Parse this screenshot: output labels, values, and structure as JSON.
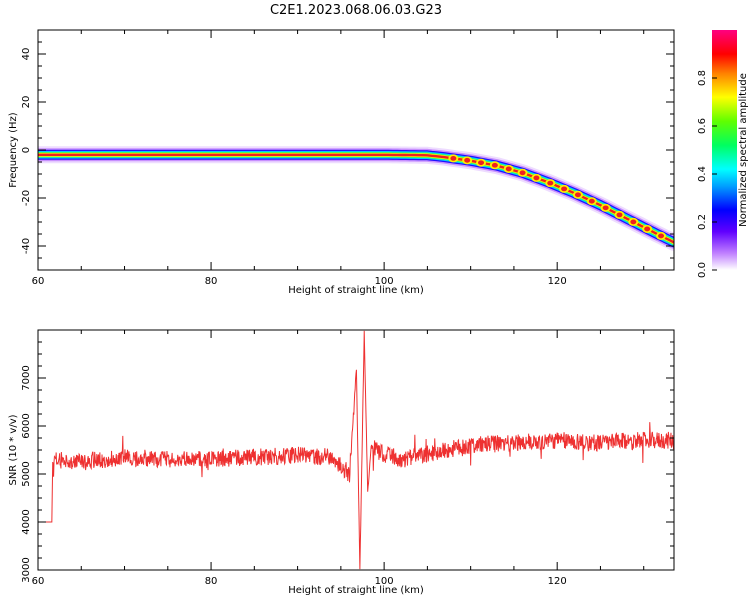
{
  "title": "C2E1.2023.068.06.03.G23",
  "colors": {
    "snr_line": "#ee3030",
    "track_core": "#ee2020",
    "background": "#ffffff"
  },
  "chart_data": [
    {
      "type": "heatmap",
      "xlabel": "Height of straight line (km)",
      "ylabel": "Frequency (Hz)",
      "xlim": [
        60,
        133.5
      ],
      "ylim": [
        -50,
        50
      ],
      "xticks": [
        "60",
        "80",
        "100",
        "120"
      ],
      "yticks": [
        "-40",
        "-20",
        "0",
        "20",
        "40"
      ],
      "grid": false,
      "track": {
        "x": [
          60,
          70,
          80,
          90,
          100,
          105,
          107,
          110,
          113,
          116,
          119,
          122,
          125,
          128,
          131,
          133.5
        ],
        "y": [
          -2,
          -2,
          -2,
          -2,
          -2,
          -2.2,
          -3,
          -4.5,
          -6.5,
          -9.5,
          -13.5,
          -18,
          -23,
          -28.5,
          -34,
          -38.5
        ]
      }
    },
    {
      "type": "line",
      "xlabel": "Height of straight line (km)",
      "ylabel": "SNR (10 * v/v)",
      "xlim": [
        60,
        133.5
      ],
      "ylim": [
        3000,
        8000
      ],
      "xticks": [
        "60",
        "80",
        "100",
        "120"
      ],
      "yticks": [
        "3000",
        "4000",
        "5000",
        "6000",
        "7000"
      ],
      "grid": false,
      "series": [
        {
          "x": [
            60,
            61.6,
            61.7,
            65,
            70,
            75,
            80,
            85,
            90,
            94,
            96,
            96.8,
            97.2,
            97.7,
            98.1,
            98.5,
            99.5,
            102,
            106,
            110,
            115,
            120,
            125,
            130,
            133.5
          ],
          "y": [
            4000,
            4000,
            5300,
            5250,
            5350,
            5300,
            5300,
            5350,
            5400,
            5350,
            5000,
            7200,
            3000,
            7950,
            4600,
            5600,
            5450,
            5300,
            5450,
            5600,
            5650,
            5700,
            5650,
            5700,
            5700
          ]
        }
      ]
    }
  ],
  "colorbar": {
    "label": "Normalized spectral amplitude",
    "ticks": [
      "0.0",
      "0.2",
      "0.4",
      "0.6",
      "0.8"
    ]
  }
}
